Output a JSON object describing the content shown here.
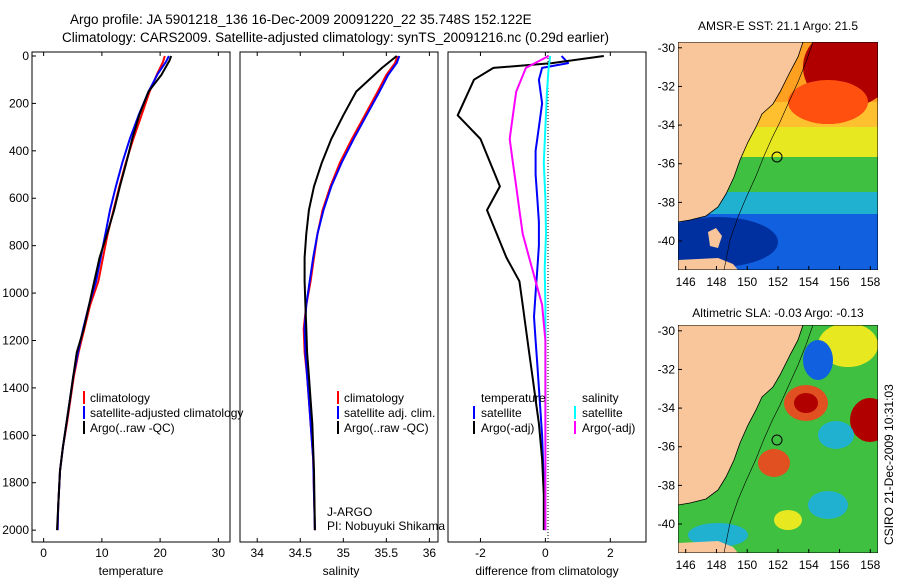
{
  "header": {
    "line1": "Argo profile: JA 5901218_136 16-Dec-2009 20091220_22 35.748S 152.122E",
    "line2": "Climatology: CARS2009. Satellite-adjusted climatology: synTS_20091216.nc (0.29d earlier)"
  },
  "side_text": "CSIRO 21-Dec-2009 10:31:03",
  "colors": {
    "black": "#000000",
    "red": "#ff0000",
    "blue": "#0000ff",
    "cyan": "#00ffff",
    "magenta": "#ff00ff",
    "land": "#f8c69a"
  },
  "chart_data": [
    {
      "id": "temp",
      "type": "line",
      "xlabel": "temperature",
      "ylabel": "",
      "xlim": [
        -2,
        32
      ],
      "ylim": [
        2050,
        0
      ],
      "y_reversed": true,
      "xticks": [
        0,
        10,
        20,
        30
      ],
      "yticks": [
        0,
        200,
        400,
        600,
        800,
        1000,
        1200,
        1400,
        1600,
        1800,
        2000
      ],
      "legend": [
        "climatology",
        "satellite-adjusted climatology",
        "Argo(..raw -QC)"
      ],
      "series": [
        {
          "name": "climatology",
          "color": "#ff0000",
          "x": [
            20.8,
            20.5,
            19.5,
            18.2,
            16.8,
            15.4,
            14.1,
            13.0,
            12.0,
            11.0,
            10.2,
            9.4,
            8.0,
            7.0,
            6.0,
            5.2,
            4.6,
            4.0,
            3.3,
            2.8,
            2.5,
            2.4
          ],
          "y": [
            0,
            25,
            75,
            150,
            250,
            350,
            450,
            550,
            650,
            750,
            850,
            950,
            1050,
            1150,
            1250,
            1350,
            1450,
            1550,
            1650,
            1750,
            1900,
            2000
          ]
        },
        {
          "name": "satellite-adjusted climatology",
          "color": "#0000ff",
          "x": [
            21.5,
            21.0,
            19.6,
            18.0,
            16.3,
            14.8,
            13.5,
            12.4,
            11.4,
            10.6,
            9.8,
            9.0,
            7.8,
            6.8,
            5.9,
            5.1,
            4.5,
            3.9,
            3.3,
            2.8,
            2.5,
            2.4
          ],
          "y": [
            0,
            25,
            75,
            150,
            250,
            350,
            450,
            550,
            650,
            750,
            850,
            950,
            1050,
            1150,
            1250,
            1350,
            1450,
            1550,
            1650,
            1750,
            1900,
            2000
          ]
        },
        {
          "name": "Argo(..raw -QC)",
          "color": "#000000",
          "x": [
            21.9,
            21.6,
            20.2,
            18.0,
            16.4,
            15.2,
            14.2,
            13.1,
            12.1,
            10.9,
            9.6,
            8.7,
            7.8,
            6.9,
            5.7,
            5.1,
            4.5,
            3.9,
            3.3,
            2.8,
            2.5,
            2.3
          ],
          "y": [
            0,
            20,
            80,
            150,
            250,
            350,
            450,
            550,
            650,
            750,
            850,
            950,
            1050,
            1150,
            1250,
            1350,
            1450,
            1550,
            1650,
            1750,
            1900,
            2000
          ]
        }
      ]
    },
    {
      "id": "sal",
      "type": "line",
      "xlabel": "salinity",
      "ylabel": "",
      "xlim": [
        33.8,
        36.1
      ],
      "ylim": [
        2050,
        0
      ],
      "y_reversed": true,
      "xticks": [
        34,
        34.5,
        35,
        35.5,
        36
      ],
      "yticks": [],
      "legend": [
        "climatology",
        "satellite adj. clim.",
        "Argo(..raw -QC)"
      ],
      "annotations": [
        "J-ARGO",
        "PI: Nobuyuki Shikama"
      ],
      "series": [
        {
          "name": "climatology",
          "color": "#ff0000",
          "x": [
            35.63,
            35.6,
            35.5,
            35.4,
            35.25,
            35.1,
            34.96,
            34.85,
            34.76,
            34.7,
            34.66,
            34.62,
            34.57,
            34.54,
            34.55,
            34.58,
            34.6,
            34.62,
            34.65,
            34.66,
            34.67
          ],
          "y": [
            0,
            30,
            80,
            150,
            250,
            350,
            450,
            550,
            650,
            750,
            850,
            950,
            1050,
            1150,
            1250,
            1350,
            1450,
            1550,
            1700,
            1850,
            2000
          ]
        },
        {
          "name": "satellite adj. clim.",
          "color": "#0000ff",
          "x": [
            35.65,
            35.62,
            35.52,
            35.42,
            35.27,
            35.12,
            34.98,
            34.86,
            34.77,
            34.7,
            34.65,
            34.61,
            34.57,
            34.55,
            34.56,
            34.58,
            34.6,
            34.62,
            34.65,
            34.66,
            34.67
          ],
          "y": [
            0,
            30,
            80,
            150,
            250,
            350,
            450,
            550,
            650,
            750,
            850,
            950,
            1050,
            1150,
            1250,
            1350,
            1450,
            1550,
            1700,
            1850,
            2000
          ]
        },
        {
          "name": "Argo(..raw -QC)",
          "color": "#000000",
          "x": [
            35.62,
            35.45,
            35.3,
            35.15,
            35.0,
            34.86,
            34.75,
            34.66,
            34.6,
            34.57,
            34.55,
            34.55,
            34.56,
            34.57,
            34.58,
            34.6,
            34.62,
            34.64,
            34.66,
            34.67
          ],
          "y": [
            0,
            50,
            100,
            150,
            250,
            350,
            450,
            550,
            650,
            750,
            850,
            950,
            1050,
            1150,
            1250,
            1350,
            1450,
            1550,
            1750,
            2000
          ]
        }
      ]
    },
    {
      "id": "diff",
      "type": "line",
      "xlabel": "difference from climatology",
      "ylabel": "",
      "xlim": [
        -3,
        3.1
      ],
      "ylim": [
        2050,
        0
      ],
      "y_reversed": true,
      "xticks": [
        -2,
        0,
        2
      ],
      "yticks": [],
      "zero_line": true,
      "legend_titles": {
        "temperature": "temperature",
        "salinity": "salinity"
      },
      "legend": [
        "satellite",
        "Argo(-adj)",
        "satellite",
        "Argo(-adj)"
      ],
      "series": [
        {
          "name": "temperature satellite",
          "color": "#0000ff",
          "x": [
            0.5,
            0.7,
            -0.1,
            -0.2,
            -0.1,
            -0.2,
            -0.3,
            -0.3,
            -0.25,
            -0.2,
            -0.2,
            -0.25,
            -0.3,
            -0.35,
            -0.3,
            -0.25,
            -0.2,
            -0.15,
            -0.1,
            -0.05,
            0
          ],
          "y": [
            0,
            30,
            50,
            100,
            200,
            300,
            400,
            500,
            600,
            700,
            800,
            900,
            1000,
            1100,
            1200,
            1300,
            1400,
            1500,
            1600,
            1800,
            2000
          ]
        },
        {
          "name": "temperature Argo(-adj)",
          "color": "#000000",
          "x": [
            1.8,
            0.2,
            -1.6,
            -2.2,
            -2.7,
            -2.0,
            -1.7,
            -1.4,
            -1.8,
            -1.5,
            -1.2,
            -0.8,
            -0.7,
            -0.6,
            -0.5,
            -0.4,
            -0.3,
            -0.2,
            -0.1,
            -0.05,
            -0.05
          ],
          "y": [
            0,
            30,
            50,
            100,
            250,
            350,
            450,
            550,
            650,
            750,
            850,
            950,
            1050,
            1150,
            1250,
            1350,
            1450,
            1550,
            1700,
            1850,
            2000
          ]
        },
        {
          "name": "salinity satellite",
          "color": "#00ffff",
          "x": [
            0.15,
            0.1,
            0.05,
            0.0,
            -0.05,
            0.0,
            0.02,
            -0.02,
            0.0,
            0.0,
            0.0,
            0.0,
            0.0,
            0.0
          ],
          "y": [
            0,
            50,
            150,
            300,
            450,
            600,
            750,
            900,
            1050,
            1200,
            1400,
            1600,
            1800,
            2000
          ]
        },
        {
          "name": "salinity Argo(-adj)",
          "color": "#ff00ff",
          "x": [
            0.1,
            -0.6,
            -0.9,
            -1.0,
            -1.1,
            -1.0,
            -0.9,
            -0.8,
            -0.7,
            -0.5,
            -0.3,
            -0.1,
            0.0,
            0.0,
            0.0
          ],
          "y": [
            0,
            50,
            150,
            250,
            350,
            450,
            550,
            650,
            750,
            850,
            950,
            1050,
            1200,
            1500,
            2000
          ]
        }
      ]
    },
    {
      "id": "sst",
      "type": "heatmap",
      "title": "AMSR-E SST: 21.1 Argo: 21.5",
      "xlim": [
        145.5,
        158.5
      ],
      "ylim": [
        -41.5,
        -29.7
      ],
      "xticks": [
        146,
        148,
        150,
        152,
        154,
        156,
        158
      ],
      "yticks": [
        -30,
        -32,
        -34,
        -36,
        -38,
        -40
      ],
      "marker": {
        "lon": 152.122,
        "lat": -35.748
      }
    },
    {
      "id": "sla",
      "type": "heatmap",
      "title": "Altimetric SLA: -0.03 Argo: -0.13",
      "xlim": [
        145.5,
        158.5
      ],
      "ylim": [
        -41.5,
        -29.7
      ],
      "xticks": [
        146,
        148,
        150,
        152,
        154,
        156,
        158
      ],
      "yticks": [
        -30,
        -32,
        -34,
        -36,
        -38,
        -40
      ],
      "marker": {
        "lon": 152.122,
        "lat": -35.748
      }
    }
  ]
}
